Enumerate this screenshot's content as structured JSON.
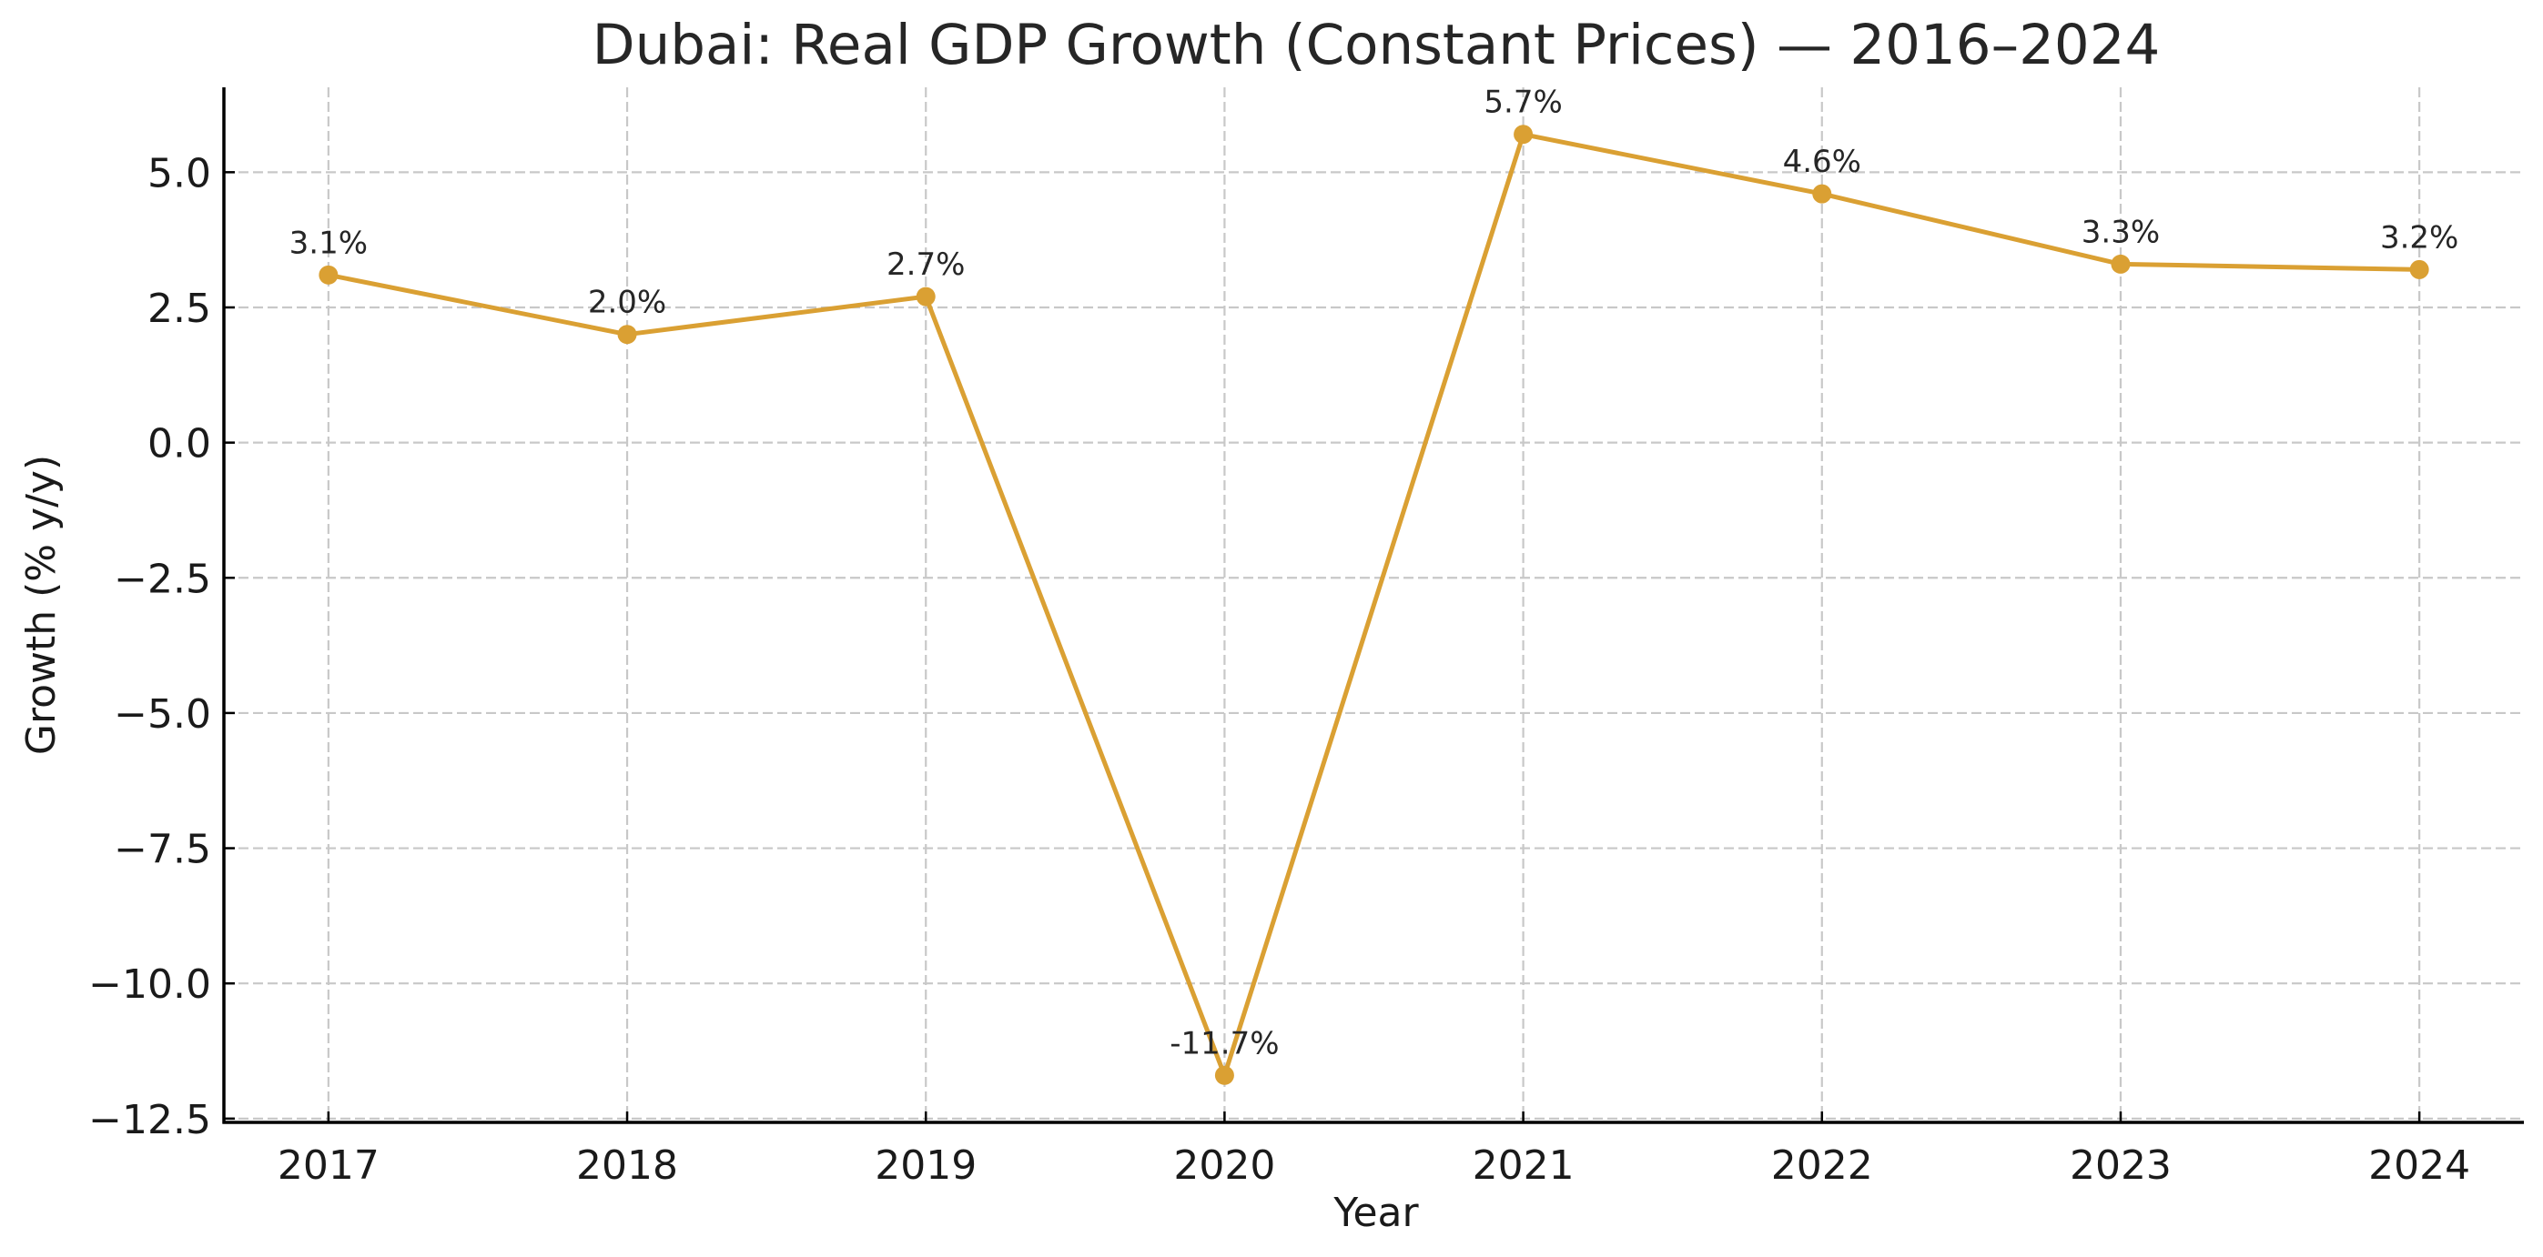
{
  "chart_data": {
    "type": "line",
    "title": "Dubai: Real GDP Growth (Constant Prices) — 2016–2024",
    "xlabel": "Year",
    "ylabel": "Growth (% y/y)",
    "x": [
      2017,
      2018,
      2019,
      2020,
      2021,
      2022,
      2023,
      2024
    ],
    "series": [
      {
        "name": "Real GDP Growth",
        "values": [
          3.1,
          2.0,
          2.7,
          -11.7,
          5.7,
          4.6,
          3.3,
          3.2
        ],
        "labels": [
          "3.1%",
          "2.0%",
          "2.7%",
          "-11.7%",
          "5.7%",
          "4.6%",
          "3.3%",
          "3.2%"
        ],
        "color": "#DAA033",
        "marker": "circle"
      }
    ],
    "xticks": [
      "2017",
      "2018",
      "2019",
      "2020",
      "2021",
      "2022",
      "2023",
      "2024"
    ],
    "yticks": [
      5.0,
      2.5,
      0.0,
      -2.5,
      -5.0,
      -7.5,
      -10.0,
      -12.5
    ],
    "ytick_labels": [
      "5.0",
      "2.5",
      "0.0",
      "−2.5",
      "−5.0",
      "−7.5",
      "−10.0",
      "−12.5"
    ],
    "xlim": [
      2016.65,
      2024.35
    ],
    "ylim": [
      -12.57,
      6.57
    ],
    "grid": true,
    "grid_style": "dashed",
    "legend": "none",
    "spines": [
      "left",
      "bottom"
    ]
  }
}
